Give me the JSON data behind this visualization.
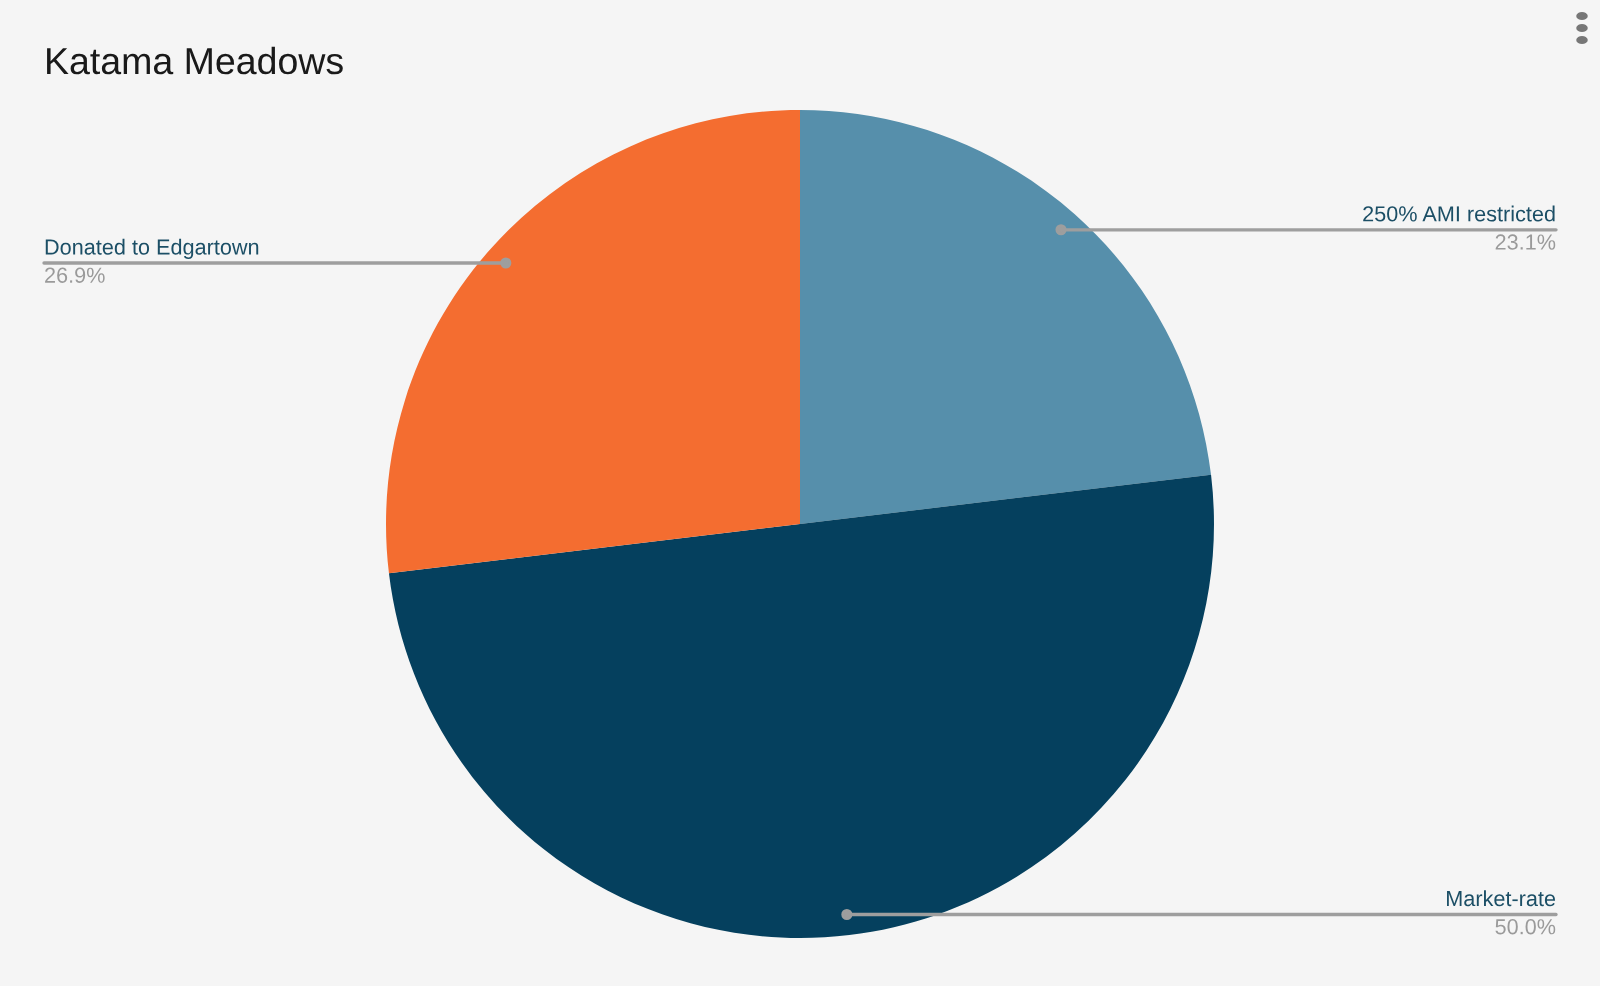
{
  "chart_data": {
    "type": "pie",
    "title": "Katama Meadows",
    "categories": [
      "250% AMI restricted",
      "Market-rate",
      "Donated to Edgartown"
    ],
    "values": [
      23.1,
      50.0,
      26.9
    ],
    "colors": [
      "#568fab",
      "#05405e",
      "#f46d30"
    ],
    "value_labels": [
      "23.1%",
      "50.0%",
      "26.9%"
    ]
  }
}
